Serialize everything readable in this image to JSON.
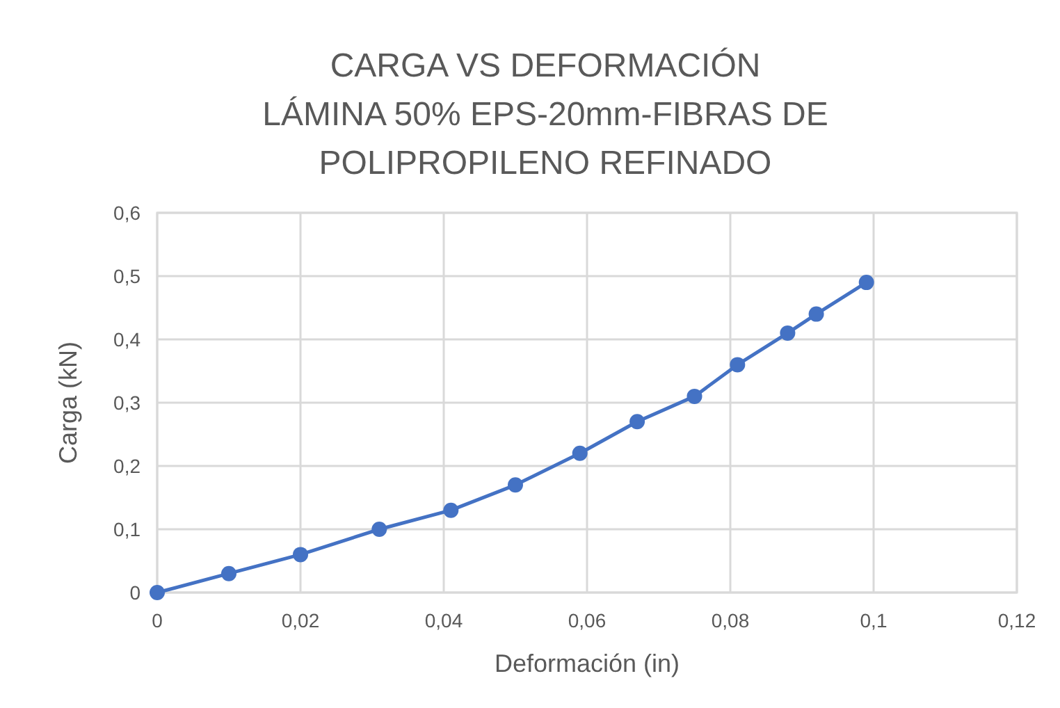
{
  "chart_data": {
    "type": "line",
    "title": "CARGA VS DEFORMACIÓN\nLÁMINA 50% EPS-20mm-FIBRAS DE\nPOLIPROPILENO REFINADO",
    "xlabel": "Deformación (in)",
    "ylabel": "Carga (kN)",
    "x": [
      0,
      0.01,
      0.02,
      0.031,
      0.041,
      0.05,
      0.059,
      0.067,
      0.075,
      0.081,
      0.088,
      0.092,
      0.099
    ],
    "series": [
      {
        "color": "#4472c4",
        "values": [
          0,
          0.03,
          0.06,
          0.1,
          0.13,
          0.17,
          0.22,
          0.27,
          0.31,
          0.36,
          0.41,
          0.44,
          0.49
        ]
      }
    ],
    "xlim": [
      0,
      0.12
    ],
    "xticks": [
      0,
      {
        "value": 0.02,
        "label": "0,02"
      },
      {
        "value": 0.04,
        "label": "0,04"
      },
      {
        "value": 0.06,
        "label": "0,06"
      },
      {
        "value": 0.08,
        "label": "0,08"
      },
      {
        "value": 0.1,
        "label": "0,1"
      },
      {
        "value": 0.12,
        "label": "0,12"
      }
    ],
    "ylim": [
      0,
      0.6
    ],
    "yticks": [
      0,
      {
        "value": 0.1,
        "label": "0,1"
      },
      {
        "value": 0.2,
        "label": "0,2"
      },
      {
        "value": 0.3,
        "label": "0,3"
      },
      {
        "value": 0.4,
        "label": "0,4"
      },
      {
        "value": 0.5,
        "label": "0,5"
      },
      {
        "value": 0.6,
        "label": "0,6"
      }
    ],
    "grid": true,
    "marker": "circle",
    "line_style": "solid"
  }
}
